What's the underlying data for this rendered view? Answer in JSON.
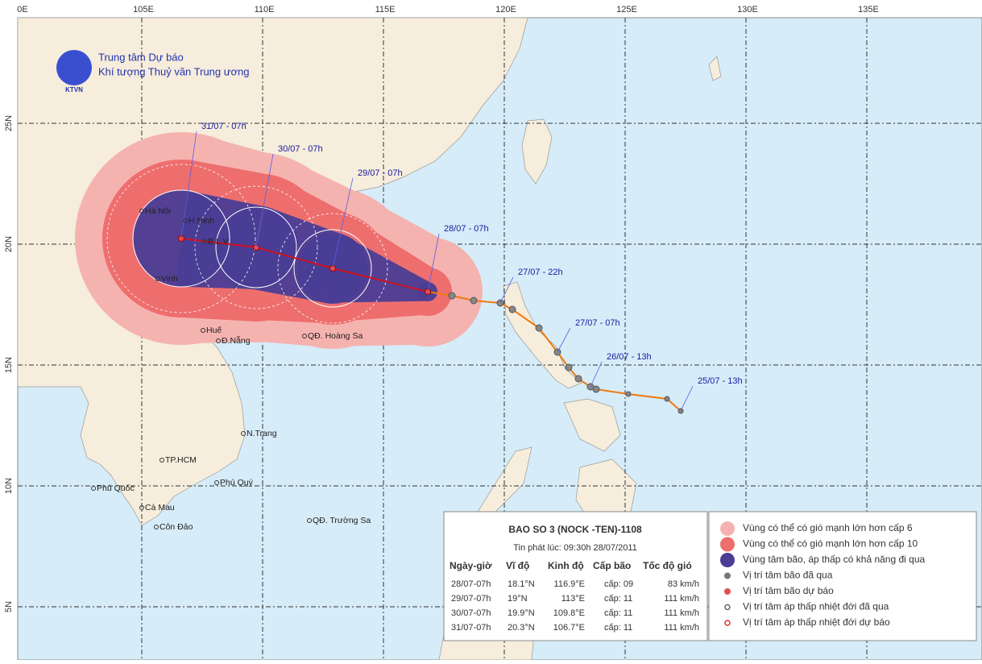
{
  "header": {
    "org_line1": "Trung tâm Dự báo",
    "org_line2": "Khí tượng Thuỷ văn Trung ương",
    "logo_text": "KTVN"
  },
  "lon_labels": [
    "0E",
    "105E",
    "110E",
    "115E",
    "120E",
    "125E",
    "130E",
    "135E"
  ],
  "lat_labels": [
    "25N",
    "20N",
    "15N",
    "10N",
    "5N"
  ],
  "places": [
    "Hà Nội",
    "H.Ninh",
    "B.L.V",
    "Vinh",
    "Huế",
    "Đ.Nẵng",
    "QĐ. Hoàng Sa",
    "N.Trang",
    "TP.HCM",
    "Phú Quý",
    "Phú Quốc",
    "Cà Mau",
    "Côn Đảo",
    "QĐ. Trường Sa"
  ],
  "track_labels": [
    "31/07 - 07h",
    "30/07 - 07h",
    "29/07 - 07h",
    "28/07 - 07h",
    "27/07 - 22h",
    "27/07 - 07h",
    "26/07 - 13h",
    "25/07 - 13h"
  ],
  "info": {
    "title": "BAO SO 3 (NOCK -TEN)-1108",
    "issued": "Tin phát lúc: 09:30h 28/07/2011",
    "columns": [
      "Ngày-giờ",
      "Vĩ độ",
      "Kinh độ",
      "Cấp bão",
      "Tốc độ gió"
    ],
    "rows": [
      [
        "28/07-07h",
        "18.1°N",
        "116.9°E",
        "cấp: 09",
        "83 km/h"
      ],
      [
        "29/07-07h",
        "19°N",
        "113°E",
        "cấp: 11",
        "111 km/h"
      ],
      [
        "30/07-07h",
        "19.9°N",
        "109.8°E",
        "cấp: 11",
        "111 km/h"
      ],
      [
        "31/07-07h",
        "20.3°N",
        "106.7°E",
        "cấp: 11",
        "111 km/h"
      ]
    ]
  },
  "legend": [
    "Vùng có thể có gió mạnh lớn hơn cấp 6",
    "Vùng có thể có gió mạnh lớn hơn cấp 10",
    "Vùng tâm bão, áp thấp có khả năng đi qua",
    "Vị trí tâm bão đã qua",
    "Vị trí tâm bão dự báo",
    "Vị trí tâm áp thấp nhiệt đới đã qua",
    "Vị trí tâm áp thấp nhiệt đới dự báo"
  ]
}
